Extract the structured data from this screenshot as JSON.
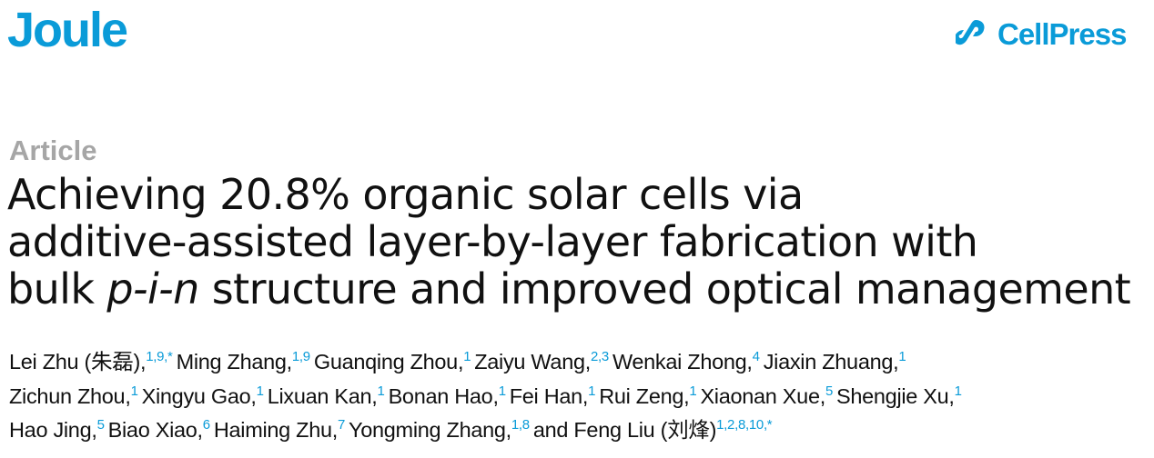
{
  "header": {
    "journal": "Joule",
    "publisher": "CellPress",
    "brand_color": "#0a9bd8",
    "publisher_icon": "cellpress-logo-icon"
  },
  "article_type": "Article",
  "title": {
    "lines": [
      [
        {
          "text": "Achieving 20.8% organic solar cells via",
          "italic": false
        }
      ],
      [
        {
          "text": "additive-assisted layer-by-layer fabrication with",
          "italic": false
        }
      ],
      [
        {
          "text": "bulk ",
          "italic": false
        },
        {
          "text": "p-i-n",
          "italic": true
        },
        {
          "text": " structure and improved optical management",
          "italic": false
        }
      ]
    ]
  },
  "authors": {
    "lines": [
      [
        {
          "name": "Lei Zhu (朱磊),",
          "sup": "1,9,*"
        },
        {
          "name": "Ming Zhang,",
          "sup": "1,9"
        },
        {
          "name": "Guanqing Zhou,",
          "sup": "1"
        },
        {
          "name": "Zaiyu Wang,",
          "sup": "2,3"
        },
        {
          "name": "Wenkai Zhong,",
          "sup": "4"
        },
        {
          "name": "Jiaxin Zhuang,",
          "sup": "1"
        }
      ],
      [
        {
          "name": "Zichun Zhou,",
          "sup": "1"
        },
        {
          "name": "Xingyu Gao,",
          "sup": "1"
        },
        {
          "name": "Lixuan Kan,",
          "sup": "1"
        },
        {
          "name": "Bonan Hao,",
          "sup": "1"
        },
        {
          "name": "Fei Han,",
          "sup": "1"
        },
        {
          "name": "Rui Zeng,",
          "sup": "1"
        },
        {
          "name": "Xiaonan Xue,",
          "sup": "5"
        },
        {
          "name": "Shengjie Xu,",
          "sup": "1"
        }
      ],
      [
        {
          "name": "Hao Jing,",
          "sup": "5"
        },
        {
          "name": "Biao Xiao,",
          "sup": "6"
        },
        {
          "name": "Haiming Zhu,",
          "sup": "7"
        },
        {
          "name": "Yongming Zhang,",
          "sup": "1,8"
        },
        {
          "name": "and Feng Liu (刘烽)",
          "sup": "1,2,8,10,*"
        }
      ]
    ]
  }
}
